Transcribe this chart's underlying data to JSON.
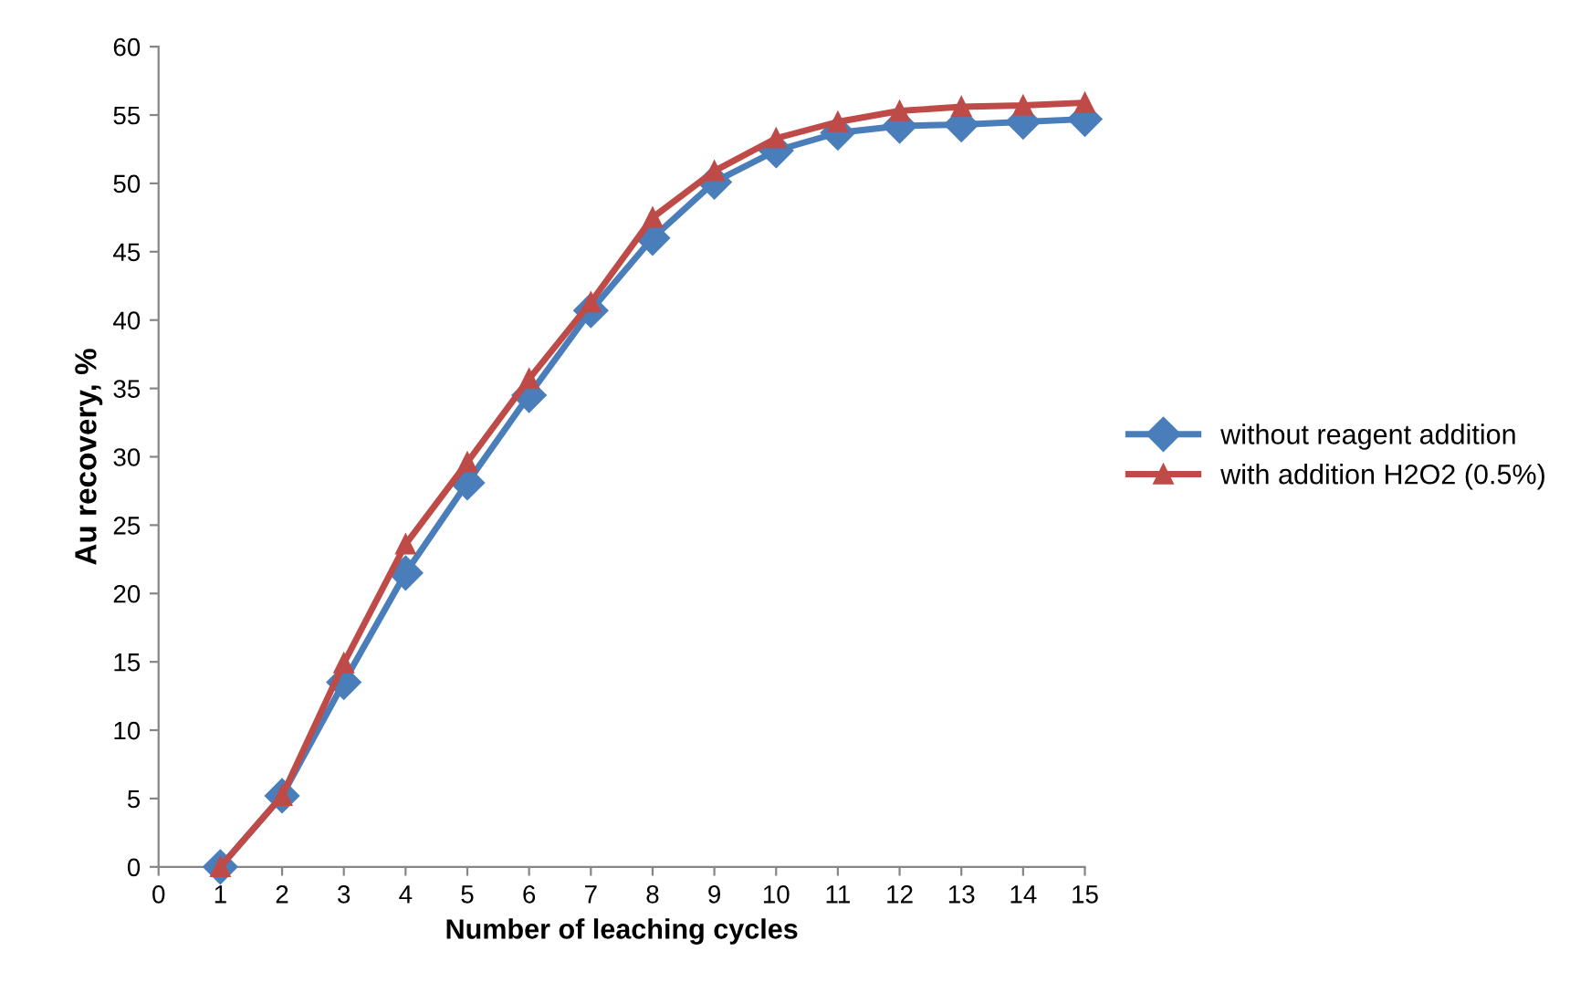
{
  "chart_data": {
    "type": "line",
    "xlabel": "Number of leaching cycles",
    "ylabel": "Au recovery, %",
    "x": [
      1,
      2,
      3,
      4,
      5,
      6,
      7,
      8,
      9,
      10,
      11,
      12,
      13,
      14,
      15
    ],
    "series": [
      {
        "name": "without reagent addition",
        "color": "#4a7ebb",
        "marker": "diamond",
        "values": [
          0,
          5.2,
          13.5,
          21.5,
          28.1,
          34.5,
          40.7,
          46,
          50.1,
          52.4,
          53.7,
          54.2,
          54.3,
          54.5,
          54.7
        ]
      },
      {
        "name": "with addition H2O2 (0.5%)",
        "color": "#be4b48",
        "marker": "triangle",
        "values": [
          0,
          5.2,
          14.9,
          23.6,
          29.6,
          35.7,
          41.3,
          47.5,
          50.9,
          53.3,
          54.5,
          55.3,
          55.6,
          55.7,
          55.9
        ]
      }
    ],
    "xlim": [
      0,
      15
    ],
    "xticks": [
      0,
      1,
      2,
      3,
      4,
      5,
      6,
      7,
      8,
      9,
      10,
      11,
      12,
      13,
      14,
      15
    ],
    "ylim": [
      0,
      60
    ],
    "yticks": [
      0,
      5,
      10,
      15,
      20,
      25,
      30,
      35,
      40,
      45,
      50,
      55,
      60
    ],
    "grid": false,
    "legend": "right",
    "line_style": "solid"
  }
}
